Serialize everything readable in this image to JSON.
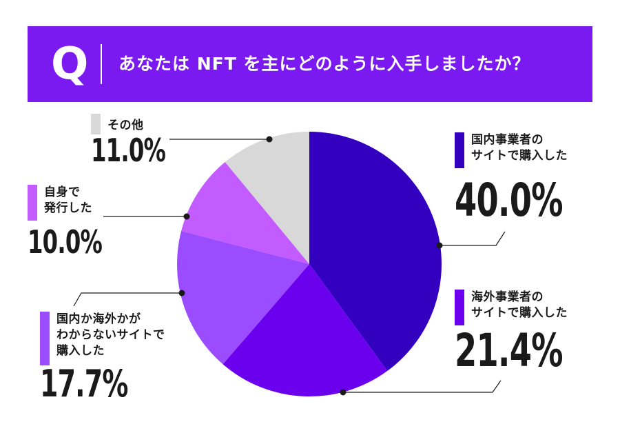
{
  "question": {
    "letter": "Q",
    "text": "あなたは NFT を主にどのように入手しましたか？"
  },
  "colors": {
    "banner": "#7a1af0"
  },
  "chart_data": {
    "type": "pie",
    "start_angle_deg": 0,
    "direction": "clockwise",
    "slices": [
      {
        "label_lines": [
          "国内事業者の",
          "サイトで購入した"
        ],
        "value": 40.0,
        "display": "40.0%",
        "color": "#3300c0"
      },
      {
        "label_lines": [
          "海外事業者の",
          "サイトで購入した"
        ],
        "value": 21.4,
        "display": "21.4%",
        "color": "#6a00ee"
      },
      {
        "label_lines": [
          "国内か海外かが",
          "わからないサイトで",
          "購入した"
        ],
        "value": 17.7,
        "display": "17.7%",
        "color": "#9c4cff"
      },
      {
        "label_lines": [
          "自身で",
          "発行した"
        ],
        "value": 10.0,
        "display": "10.0%",
        "color": "#c35cff"
      },
      {
        "label_lines": [
          "その他"
        ],
        "value": 11.0,
        "display": "11.0%",
        "color": "#d8d8d8"
      }
    ]
  }
}
